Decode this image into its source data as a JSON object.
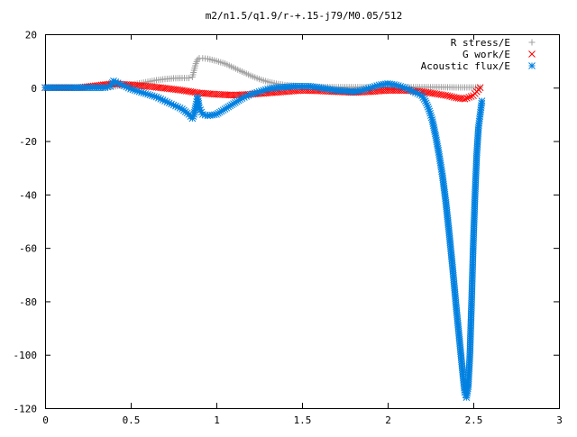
{
  "chart_data": {
    "type": "scatter",
    "title": "m2/n1.5/q1.9/r-+.15-j79/M0.05/512",
    "xlabel": "",
    "ylabel": "",
    "xlim": [
      0,
      3
    ],
    "ylim": [
      -120,
      20
    ],
    "x_ticks": [
      "0",
      "0.5",
      "1",
      "1.5",
      "2",
      "2.5",
      "3"
    ],
    "y_ticks": [
      "20",
      "0",
      "-20",
      "-40",
      "-60",
      "-80",
      "-100",
      "-120"
    ],
    "grid": false,
    "legend_position": "top-right",
    "series": [
      {
        "name": "R stress/E",
        "marker": "plus",
        "color": "#a0a0a0",
        "x": [
          0.0,
          0.1,
          0.2,
          0.3,
          0.4,
          0.45,
          0.5,
          0.55,
          0.6,
          0.65,
          0.7,
          0.75,
          0.8,
          0.84,
          0.86,
          0.87,
          0.88,
          0.89,
          0.9,
          0.92,
          0.95,
          1.0,
          1.05,
          1.1,
          1.15,
          1.2,
          1.25,
          1.3,
          1.35,
          1.4,
          1.5,
          1.6,
          1.7,
          1.8,
          1.9,
          2.0,
          2.1,
          2.2,
          2.3,
          2.4,
          2.5,
          2.54
        ],
        "y": [
          0.0,
          0.0,
          0.0,
          0.1,
          0.4,
          0.8,
          1.2,
          1.6,
          2.2,
          2.8,
          3.2,
          3.5,
          3.6,
          3.6,
          4.0,
          6.5,
          9.0,
          10.5,
          11.0,
          11.0,
          10.8,
          10.0,
          9.0,
          7.5,
          6.0,
          4.5,
          3.2,
          2.2,
          1.5,
          1.0,
          0.5,
          0.3,
          0.2,
          0.2,
          0.2,
          0.2,
          0.2,
          0.2,
          0.2,
          0.1,
          0.1,
          0.1
        ]
      },
      {
        "name": "G work/E",
        "marker": "cross",
        "color": "#ff0000",
        "x": [
          0.0,
          0.2,
          0.4,
          0.5,
          0.6,
          0.7,
          0.8,
          0.85,
          0.9,
          1.0,
          1.1,
          1.2,
          1.3,
          1.4,
          1.5,
          1.6,
          1.7,
          1.8,
          1.9,
          2.0,
          2.1,
          2.2,
          2.3,
          2.35,
          2.4,
          2.45,
          2.5,
          2.52,
          2.54
        ],
        "y": [
          0.0,
          0.0,
          1.5,
          1.0,
          0.5,
          -0.2,
          -1.0,
          -1.5,
          -2.0,
          -2.5,
          -2.8,
          -2.5,
          -2.0,
          -1.5,
          -1.0,
          -1.2,
          -1.5,
          -1.8,
          -1.5,
          -1.0,
          -1.0,
          -1.5,
          -2.5,
          -3.0,
          -3.8,
          -4.2,
          -3.0,
          -1.5,
          0.0
        ]
      },
      {
        "name": "Acoustic flux/E",
        "marker": "star",
        "color": "#0080e0",
        "x": [
          0.0,
          0.05,
          0.1,
          0.15,
          0.2,
          0.25,
          0.3,
          0.35,
          0.38,
          0.4,
          0.45,
          0.5,
          0.55,
          0.6,
          0.65,
          0.7,
          0.75,
          0.8,
          0.84,
          0.86,
          0.87,
          0.88,
          0.89,
          0.9,
          0.92,
          0.95,
          1.0,
          1.05,
          1.1,
          1.15,
          1.2,
          1.25,
          1.3,
          1.35,
          1.4,
          1.45,
          1.5,
          1.55,
          1.6,
          1.65,
          1.7,
          1.75,
          1.8,
          1.85,
          1.9,
          1.95,
          2.0,
          2.05,
          2.1,
          2.15,
          2.2,
          2.22,
          2.24,
          2.26,
          2.28,
          2.3,
          2.32,
          2.34,
          2.36,
          2.38,
          2.4,
          2.42,
          2.44,
          2.45,
          2.46,
          2.47,
          2.48,
          2.49,
          2.5,
          2.51,
          2.52,
          2.53,
          2.54,
          2.55
        ],
        "y": [
          0.0,
          0.0,
          0.0,
          0.0,
          0.0,
          0.0,
          0.0,
          0.0,
          0.5,
          2.5,
          1.0,
          -0.5,
          -1.5,
          -2.5,
          -3.5,
          -5.0,
          -6.5,
          -8.0,
          -10.0,
          -11.5,
          -10.0,
          -7.0,
          -3.5,
          -7.5,
          -10.0,
          -10.5,
          -10.0,
          -8.0,
          -6.0,
          -4.0,
          -2.5,
          -1.5,
          -0.5,
          0.0,
          0.2,
          0.5,
          0.5,
          0.5,
          0.0,
          -0.5,
          -1.0,
          -1.2,
          -1.5,
          -1.0,
          0.0,
          1.0,
          1.5,
          1.0,
          0.0,
          -1.5,
          -3.0,
          -5.0,
          -8.0,
          -12.0,
          -18.0,
          -25.0,
          -33.0,
          -43.0,
          -55.0,
          -68.0,
          -82.0,
          -95.0,
          -108.0,
          -114.0,
          -116.0,
          -112.0,
          -100.0,
          -80.0,
          -58.0,
          -40.0,
          -25.0,
          -15.0,
          -10.0,
          -5.0
        ]
      }
    ]
  }
}
